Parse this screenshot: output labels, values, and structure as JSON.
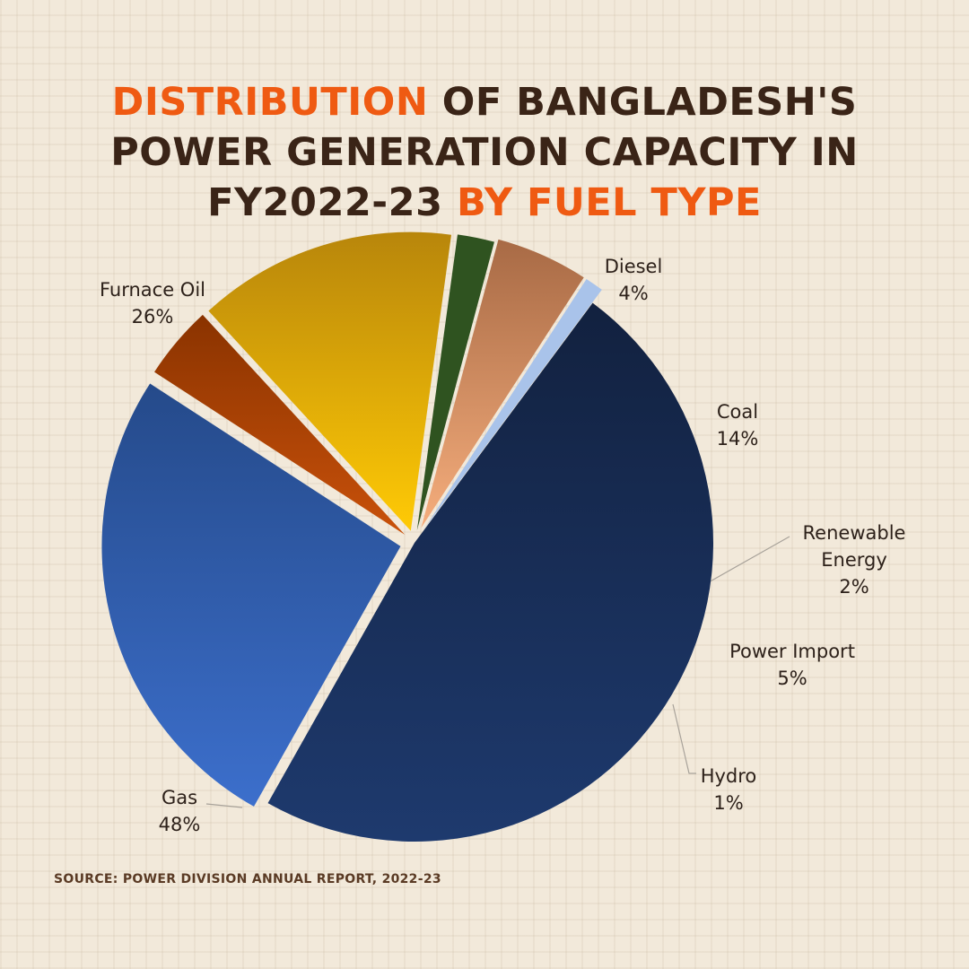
{
  "title": {
    "part1": "DISTRIBUTION",
    "part2": " OF BANGLADESH'S",
    "part3": "POWER GENERATION CAPACITY IN",
    "part4": "FY2022-23 ",
    "part5": "BY FUEL TYPE"
  },
  "source": "SOURCE: POWER DIVISION ANNUAL REPORT, 2022-23",
  "colors": {
    "title_dark": "#3a2417",
    "title_highlight": "#ef5a12",
    "background": "#f2e9da"
  },
  "chart_data": {
    "type": "pie",
    "title": "DISTRIBUTION OF BANGLADESH'S POWER GENERATION CAPACITY IN FY2022-23 BY FUEL TYPE",
    "slices": [
      {
        "label": "Diesel",
        "value": 4,
        "value_label": "4%",
        "color_top": "#8a3300",
        "color_bottom": "#c9510a"
      },
      {
        "label": "Coal",
        "value": 14,
        "value_label": "14%",
        "color_top": "#b8860b",
        "color_bottom": "#ffca05"
      },
      {
        "label": "Renewable Energy",
        "value": 2,
        "value_label": "2%",
        "color_top": "#2f5320",
        "color_bottom": "#2f5320"
      },
      {
        "label": "Power Import",
        "value": 5,
        "value_label": "5%",
        "color_top": "#a86a45",
        "color_bottom": "#f5ad7c"
      },
      {
        "label": "Hydro",
        "value": 1,
        "value_label": "1%",
        "color_top": "#a9c3ea",
        "color_bottom": "#a9c3ea"
      },
      {
        "label": "Gas",
        "value": 48,
        "value_label": "48%",
        "color_top": "#12213f",
        "color_bottom": "#1e3a6e"
      },
      {
        "label": "Furnace Oil",
        "value": 26,
        "value_label": "26%",
        "color_top": "#254a8a",
        "color_bottom": "#3c6fcc"
      }
    ]
  }
}
